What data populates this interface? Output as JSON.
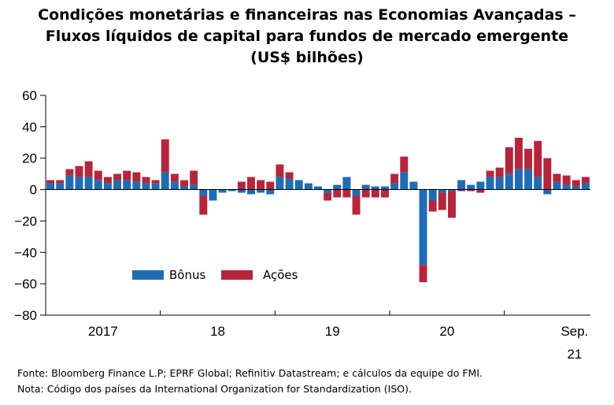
{
  "title_lines": [
    "Condições monetárias e financeiras nas Economias Avançadas –",
    "Fluxos líquidos de capital para fundos de mercado emergente",
    "(US$ bilhões)"
  ],
  "footnotes": {
    "source": "Fonte: Bloomberg Finance L.P; EPRF Global; Refinitiv Datastream; e cálculos da equipe do FMI.",
    "note": "Nota: Código dos países da International Organization for Standardization (ISO)."
  },
  "colors": {
    "bonds": "#1f6cb4",
    "equities": "#b5263b",
    "axis": "#000000",
    "zero_line": "#000000"
  },
  "chart_data": {
    "type": "bar",
    "stacked": true,
    "title": "Condições monetárias e financeiras nas Economias Avançadas – Fluxos líquidos de capital para fundos de mercado emergente (US$ bilhões)",
    "ylim": [
      -80,
      60
    ],
    "yticks": [
      60,
      40,
      20,
      0,
      -20,
      -40,
      -60,
      -80
    ],
    "grid": false,
    "legend_placement": "lower-left",
    "period_start": "2017-01",
    "period_end": "2021-09",
    "xtick_labels": [
      "2017",
      "18",
      "19",
      "20",
      "Sep."
    ],
    "xtick_sublabels": [
      "",
      "",
      "",
      "",
      "21"
    ],
    "categories": [
      "2017-01",
      "2017-02",
      "2017-03",
      "2017-04",
      "2017-05",
      "2017-06",
      "2017-07",
      "2017-08",
      "2017-09",
      "2017-10",
      "2017-11",
      "2017-12",
      "2018-01",
      "2018-02",
      "2018-03",
      "2018-04",
      "2018-05",
      "2018-06",
      "2018-07",
      "2018-08",
      "2018-09",
      "2018-10",
      "2018-11",
      "2018-12",
      "2019-01",
      "2019-02",
      "2019-03",
      "2019-04",
      "2019-05",
      "2019-06",
      "2019-07",
      "2019-08",
      "2019-09",
      "2019-10",
      "2019-11",
      "2019-12",
      "2020-01",
      "2020-02",
      "2020-03",
      "2020-04",
      "2020-05",
      "2020-06",
      "2020-07",
      "2020-08",
      "2020-09",
      "2020-10",
      "2020-11",
      "2020-12",
      "2021-01",
      "2021-02",
      "2021-03",
      "2021-04",
      "2021-05",
      "2021-06",
      "2021-07",
      "2021-08",
      "2021-09"
    ],
    "series": [
      {
        "name": "Bônus",
        "color": "#1f6cb4",
        "values": [
          4,
          4,
          9,
          8,
          8,
          6,
          4,
          6,
          6,
          5,
          4,
          4,
          11,
          5,
          2,
          3,
          -4,
          -7,
          -2,
          -1,
          -2,
          -3,
          -2,
          -3,
          8,
          7,
          6,
          4,
          2,
          -2,
          3,
          8,
          -4,
          3,
          2,
          2,
          4,
          11,
          5,
          -48,
          -7,
          -2,
          -1,
          6,
          3,
          5,
          8,
          8,
          10,
          13,
          13,
          8,
          -3,
          5,
          3,
          2,
          4
        ]
      },
      {
        "name": "Ações",
        "color": "#b5263b",
        "values": [
          2,
          2,
          4,
          7,
          10,
          6,
          4,
          4,
          6,
          6,
          4,
          2,
          21,
          5,
          4,
          9,
          -12,
          0,
          0,
          0,
          5,
          8,
          6,
          5,
          8,
          4,
          0,
          0,
          0,
          -5,
          -5,
          -5,
          -12,
          -5,
          -5,
          -5,
          6,
          10,
          0,
          -11,
          -7,
          -11,
          -17,
          -1,
          -1,
          -2,
          4,
          6,
          17,
          20,
          13,
          23,
          20,
          5,
          6,
          4,
          4
        ]
      }
    ]
  }
}
